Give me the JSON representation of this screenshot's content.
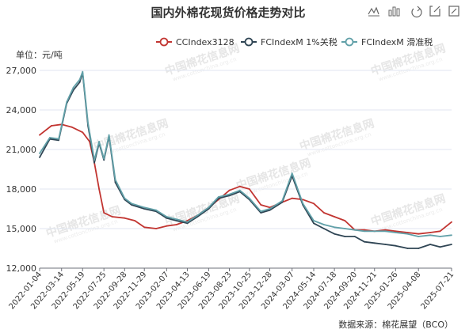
{
  "chart_data": {
    "type": "line",
    "title": "国内外棉花现货价格走势对比",
    "unit_label": "单位：元/吨",
    "source": "数据来源：棉花展望（BCO）",
    "watermark": "中国棉花信息网",
    "watermark_url": "www.cottonchina.org.cn",
    "ylim": [
      12000,
      27000
    ],
    "yticks": [
      "27,000",
      "24,000",
      "21,000",
      "18,000",
      "15,000",
      "12,000"
    ],
    "ytick_values": [
      27000,
      24000,
      21000,
      18000,
      15000,
      12000
    ],
    "xticks": [
      "2022-01-04",
      "2022-03-14",
      "2022-05-19",
      "2022-07-25",
      "2022-09-28",
      "2022-11-29",
      "2023-02-07",
      "2023-04-13",
      "2023-06-19",
      "2023-08-23",
      "2023-10-25",
      "2023-12-28",
      "2024-03-07",
      "2024-05-14",
      "2024-07-18",
      "2024-09-20",
      "2024-11-21",
      "2025-01-26",
      "2025-04-08",
      "2025-07-21"
    ],
    "grid": true,
    "legend_position": "top-right",
    "series": [
      {
        "name": "CCIndex3128",
        "color": "#c23531",
        "x": [
          "2022-01-04",
          "2022-02-10",
          "2022-03-14",
          "2022-04-15",
          "2022-05-19",
          "2022-06-10",
          "2022-06-25",
          "2022-07-10",
          "2022-07-25",
          "2022-08-20",
          "2022-09-28",
          "2022-10-30",
          "2022-11-29",
          "2023-01-05",
          "2023-02-07",
          "2023-03-10",
          "2023-04-13",
          "2023-05-15",
          "2023-06-19",
          "2023-07-20",
          "2023-08-23",
          "2023-09-25",
          "2023-10-25",
          "2023-11-30",
          "2023-12-28",
          "2024-02-05",
          "2024-03-07",
          "2024-04-10",
          "2024-05-14",
          "2024-06-15",
          "2024-07-18",
          "2024-08-20",
          "2024-09-20",
          "2024-10-20",
          "2024-11-21",
          "2024-12-25",
          "2025-01-26",
          "2025-03-05",
          "2025-04-08",
          "2025-05-15",
          "2025-06-15",
          "2025-07-21"
        ],
        "values": [
          22100,
          22800,
          22900,
          22700,
          22300,
          21600,
          20000,
          18000,
          16200,
          15900,
          15800,
          15600,
          15100,
          15000,
          15200,
          15300,
          15600,
          16000,
          16600,
          17200,
          17900,
          18200,
          18000,
          16800,
          16600,
          17000,
          17300,
          17200,
          16900,
          16200,
          15900,
          15600,
          14900,
          14900,
          14800,
          14900,
          14800,
          14700,
          14600,
          14700,
          14800,
          15500
        ]
      },
      {
        "name": "FCIndexM 1%关税",
        "color": "#2f4554",
        "x": [
          "2022-01-04",
          "2022-02-05",
          "2022-03-05",
          "2022-03-30",
          "2022-04-20",
          "2022-05-10",
          "2022-05-19",
          "2022-06-05",
          "2022-06-25",
          "2022-07-10",
          "2022-07-25",
          "2022-08-10",
          "2022-08-30",
          "2022-09-28",
          "2022-10-20",
          "2022-11-29",
          "2023-01-05",
          "2023-02-07",
          "2023-03-10",
          "2023-04-13",
          "2023-05-15",
          "2023-06-19",
          "2023-07-20",
          "2023-08-23",
          "2023-09-25",
          "2023-10-25",
          "2023-11-30",
          "2023-12-28",
          "2024-02-05",
          "2024-03-07",
          "2024-04-10",
          "2024-05-14",
          "2024-06-15",
          "2024-07-18",
          "2024-08-20",
          "2024-09-20",
          "2024-10-20",
          "2024-11-21",
          "2024-12-25",
          "2025-01-26",
          "2025-03-05",
          "2025-04-08",
          "2025-05-15",
          "2025-06-15",
          "2025-07-21"
        ],
        "values": [
          20400,
          21800,
          21700,
          24500,
          25500,
          26100,
          26800,
          22800,
          20000,
          21500,
          20200,
          22000,
          18500,
          17200,
          16800,
          16500,
          16300,
          15800,
          15600,
          15400,
          15900,
          16500,
          17300,
          17500,
          17800,
          17200,
          16200,
          16400,
          17000,
          19000,
          16800,
          15400,
          15000,
          14600,
          14400,
          14400,
          14000,
          13900,
          13800,
          13700,
          13500,
          13500,
          13800,
          13600,
          13800
        ]
      },
      {
        "name": "FCIndexM 滑准税",
        "color": "#61a0a8",
        "x": [
          "2022-01-04",
          "2022-02-05",
          "2022-03-05",
          "2022-03-30",
          "2022-04-20",
          "2022-05-10",
          "2022-05-19",
          "2022-06-05",
          "2022-06-25",
          "2022-07-10",
          "2022-07-25",
          "2022-08-10",
          "2022-08-30",
          "2022-09-28",
          "2022-10-20",
          "2022-11-29",
          "2023-01-05",
          "2023-02-07",
          "2023-03-10",
          "2023-04-13",
          "2023-05-15",
          "2023-06-19",
          "2023-07-20",
          "2023-08-23",
          "2023-09-25",
          "2023-10-25",
          "2023-11-30",
          "2023-12-28",
          "2024-02-05",
          "2024-03-07",
          "2024-04-10",
          "2024-05-14",
          "2024-06-15",
          "2024-07-18",
          "2024-08-20",
          "2024-09-20",
          "2024-10-20",
          "2024-11-21",
          "2024-12-25",
          "2025-01-26",
          "2025-03-05",
          "2025-04-08",
          "2025-05-15",
          "2025-06-15",
          "2025-07-21"
        ],
        "values": [
          20700,
          21900,
          21800,
          24600,
          25700,
          26300,
          26900,
          23000,
          20200,
          21600,
          20300,
          22100,
          18700,
          17300,
          16900,
          16600,
          16400,
          15900,
          15700,
          15500,
          16000,
          16600,
          17400,
          17600,
          17900,
          17300,
          16300,
          16500,
          17100,
          19200,
          16900,
          15600,
          15300,
          15100,
          15000,
          14900,
          14800,
          14800,
          14800,
          14700,
          14600,
          14400,
          14500,
          14400,
          14500
        ]
      }
    ]
  },
  "toolbar": {
    "icons": [
      "line-chart-icon",
      "bar-chart-icon",
      "restore-icon",
      "save-image-icon",
      "data-view-icon"
    ]
  }
}
